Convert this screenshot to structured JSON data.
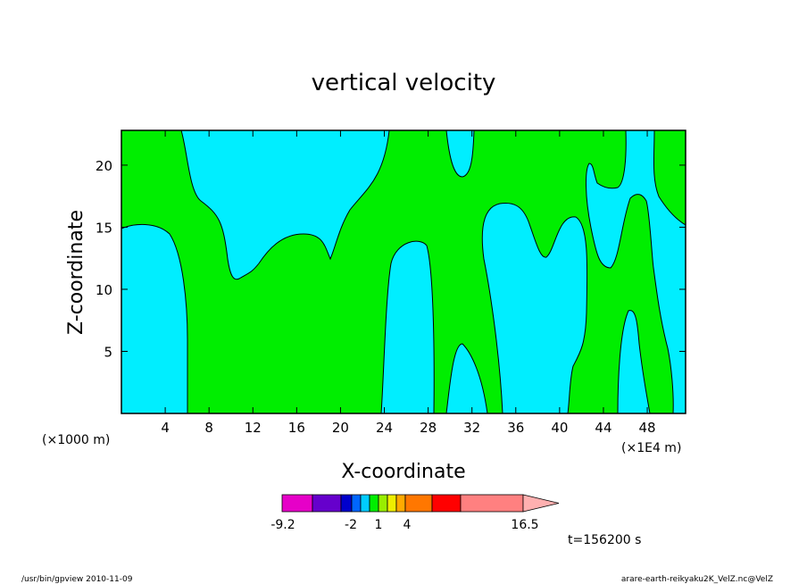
{
  "chart_data": {
    "type": "contour",
    "title": "vertical velocity",
    "xlabel": "X-coordinate",
    "ylabel": "Z-coordinate",
    "x_unit_left": "(×1000 m)",
    "x_unit_right": "(×1E4 m)",
    "xlim": [
      0,
      51.5
    ],
    "ylim": [
      0,
      22.8
    ],
    "xticks": [
      4,
      8,
      12,
      16,
      20,
      24,
      28,
      32,
      36,
      40,
      44,
      48
    ],
    "yticks": [
      5,
      10,
      15,
      20
    ],
    "fill_colors": {
      "cyan_region": "#00eeff",
      "green_region": "#00ee00"
    },
    "regions": [
      {
        "fill": "cyan",
        "points": [
          [
            0,
            22.8
          ],
          [
            5.5,
            22.8
          ],
          [
            6.3,
            20.5
          ],
          [
            7.5,
            18.2
          ],
          [
            9.5,
            17.0
          ],
          [
            10.5,
            15.5
          ],
          [
            11,
            13
          ],
          [
            11.3,
            11
          ],
          [
            12.2,
            11.3
          ],
          [
            13,
            12.3
          ],
          [
            14.5,
            13.9
          ],
          [
            16.5,
            14.6
          ],
          [
            18.2,
            14.0
          ],
          [
            19,
            12.4
          ],
          [
            20,
            14.5
          ],
          [
            20.7,
            16.2
          ],
          [
            21.5,
            17.4
          ],
          [
            23,
            19.0
          ],
          [
            24,
            21.0
          ],
          [
            24.2,
            22.8
          ],
          [
            51.5,
            22.8
          ],
          [
            51.5,
            15.2
          ],
          [
            49.8,
            16.2
          ],
          [
            48.7,
            18.7
          ],
          [
            48.8,
            22.8
          ],
          [
            46.6,
            22.8
          ],
          [
            46.2,
            18.8
          ],
          [
            44.8,
            18.5
          ],
          [
            43.8,
            19.4
          ],
          [
            42.6,
            20.5
          ],
          [
            41.8,
            19.0
          ],
          [
            42.0,
            14.5
          ],
          [
            43.5,
            12.0
          ],
          [
            45,
            14.0
          ],
          [
            46.5,
            17.0
          ],
          [
            47.5,
            17.5
          ],
          [
            48.0,
            15
          ],
          [
            48.3,
            10
          ],
          [
            49.2,
            6
          ],
          [
            50,
            3.5
          ],
          [
            49.8,
            0
          ],
          [
            0,
            0
          ],
          [
            0,
            15.0
          ],
          [
            1,
            15.1
          ],
          [
            2.5,
            15.3
          ],
          [
            4,
            15.0
          ],
          [
            5,
            13.5
          ],
          [
            5.8,
            10
          ],
          [
            6.1,
            6
          ],
          [
            6.1,
            0
          ],
          [
            0,
            0
          ]
        ]
      }
    ],
    "colorbar": {
      "colors": [
        "#e600c8",
        "#6600cc",
        "#0000cc",
        "#0066ff",
        "#00ccff",
        "#00ee00",
        "#99ee00",
        "#eeee00",
        "#ffaa00",
        "#ff7700",
        "#ff0000",
        "#ff8080",
        "#ffb0b0"
      ],
      "labels": [
        "-9.2",
        "-2",
        "1",
        "4",
        "16.5"
      ]
    },
    "time_label": "t=156200 s",
    "footer_left": "/usr/bin/gpview  2010-11-09",
    "footer_right": "arare-earth-reikyaku2K_VelZ.nc@VelZ"
  }
}
